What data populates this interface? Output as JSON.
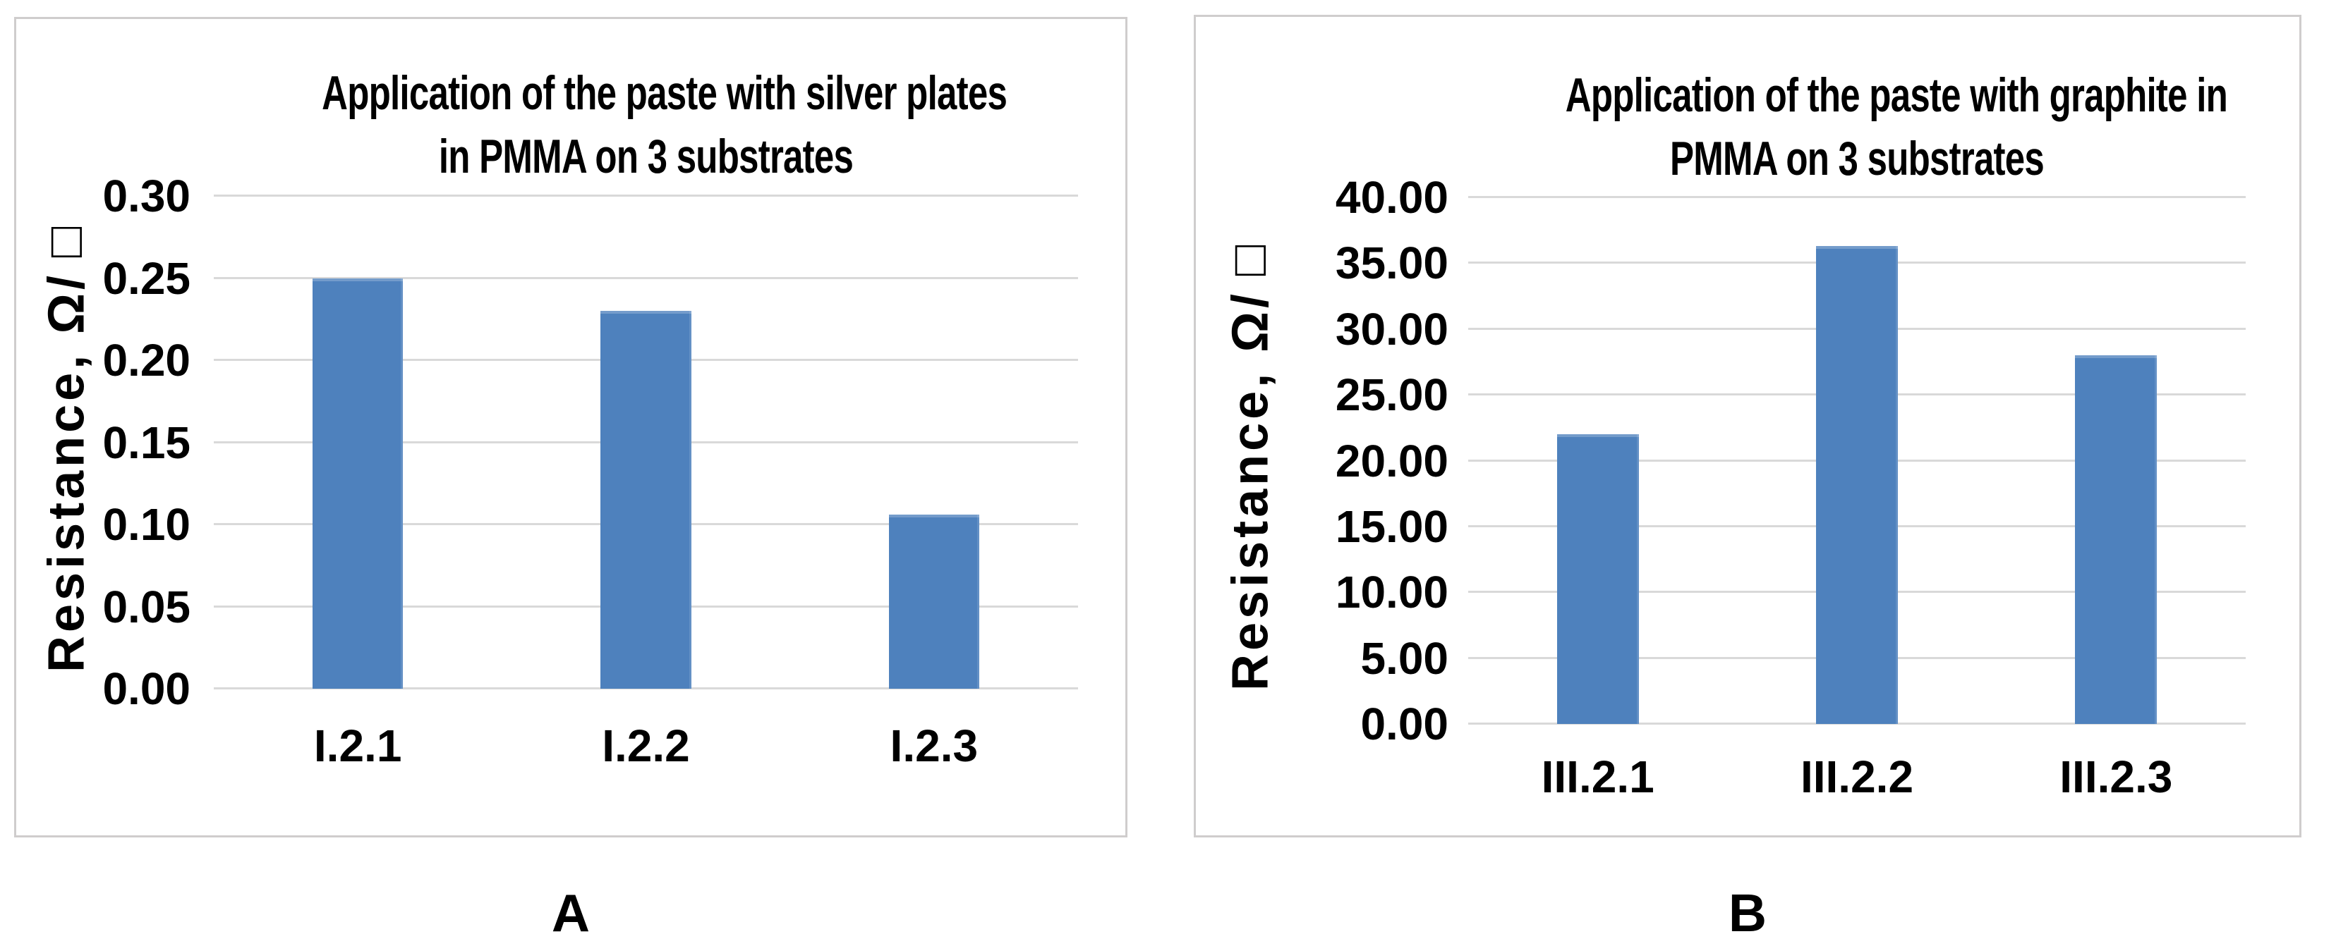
{
  "colors": {
    "bar": "#4E81BD",
    "gridline": "#D9D9D9",
    "panel_border": "#CFCDCD",
    "text": "#000000",
    "background": "#FFFFFF"
  },
  "chart_data": [
    {
      "type": "bar",
      "panel_label": "A",
      "title": "Application of the paste with silver plates in PMMA on 3 substrates",
      "title_lines": [
        "Application of the paste with silver plates",
        "in PMMA on 3 substrates"
      ],
      "ylabel": "Resistance, Ω/□",
      "xlabel": "",
      "categories": [
        "I.2.1",
        "I.2.2",
        "I.2.3"
      ],
      "values": [
        0.25,
        0.23,
        0.106
      ],
      "y_ticks": [
        "0.30",
        "0.25",
        "0.20",
        "0.15",
        "0.10",
        "0.05",
        "0.00"
      ],
      "ylim": [
        0,
        0.3
      ],
      "grid": true,
      "legend": "none"
    },
    {
      "type": "bar",
      "panel_label": "B",
      "title": "Application of the paste with graphite in PMMA on 3 substrates",
      "title_lines": [
        "Application of the paste with graphite in",
        "PMMA on 3 substrates"
      ],
      "ylabel": "Resistance, Ω/□",
      "xlabel": "",
      "categories": [
        "III.2.1",
        "III.2.2",
        "III.2.3"
      ],
      "values": [
        22.0,
        36.3,
        28.0
      ],
      "y_ticks": [
        "40.00",
        "35.00",
        "30.00",
        "25.00",
        "20.00",
        "15.00",
        "10.00",
        "5.00",
        "0.00"
      ],
      "ylim": [
        0,
        40
      ],
      "grid": true,
      "legend": "none"
    }
  ]
}
